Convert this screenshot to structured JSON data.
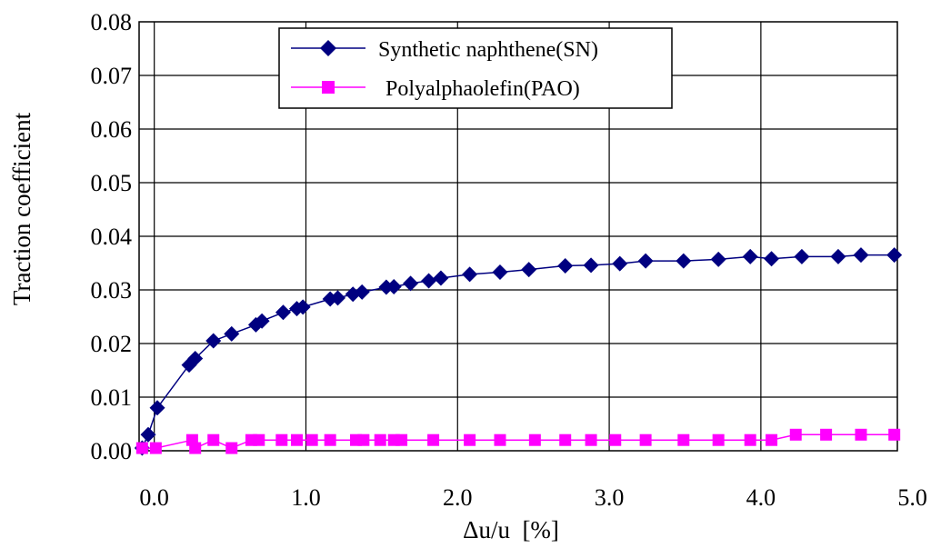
{
  "chart_data": {
    "type": "line",
    "title": "",
    "xlabel": "Δu/u  [%]",
    "ylabel": "Traction coefficient",
    "xlim": [
      -0.1,
      4.9
    ],
    "ylim": [
      0,
      0.08
    ],
    "grid": true,
    "legend": "top-center",
    "x_ticks": [
      0.0,
      1.0,
      2.0,
      3.0,
      4.0,
      5.0
    ],
    "x_tick_labels": [
      "0.0",
      "1.0",
      "2.0",
      "3.0",
      "4.0",
      "5.0"
    ],
    "y_ticks": [
      0,
      0.01,
      0.02,
      0.03,
      0.04,
      0.05,
      0.06,
      0.07,
      0.08
    ],
    "y_tick_labels": [
      "0.00",
      "0.01",
      "0.02",
      "0.03",
      "0.04",
      "0.05",
      "0.06",
      "0.07",
      "0.08"
    ],
    "series": [
      {
        "name": "Synthetic naphthene(SN)",
        "color": "#000080",
        "marker": "diamond",
        "x": [
          -0.08,
          -0.04,
          0.02,
          0.23,
          0.27,
          0.39,
          0.51,
          0.67,
          0.71,
          0.85,
          0.94,
          0.98,
          1.16,
          1.21,
          1.31,
          1.37,
          1.53,
          1.58,
          1.69,
          1.81,
          1.89,
          2.08,
          2.28,
          2.47,
          2.71,
          2.88,
          3.07,
          3.24,
          3.49,
          3.72,
          3.93,
          4.07,
          4.27,
          4.51,
          4.66,
          4.88
        ],
        "y": [
          0.0005,
          0.003,
          0.008,
          0.016,
          0.0172,
          0.0205,
          0.0218,
          0.0235,
          0.0242,
          0.0258,
          0.0265,
          0.0268,
          0.0283,
          0.0285,
          0.0292,
          0.0296,
          0.0305,
          0.0306,
          0.0312,
          0.0317,
          0.0322,
          0.0329,
          0.0333,
          0.0338,
          0.0345,
          0.0346,
          0.0349,
          0.0354,
          0.0354,
          0.0357,
          0.0362,
          0.0358,
          0.0362,
          0.0362,
          0.0365,
          0.0365
        ]
      },
      {
        "name": "Polyalphaolefin(PAO)",
        "color": "#ff00ff",
        "marker": "square",
        "x": [
          -0.08,
          0.01,
          0.25,
          0.27,
          0.39,
          0.51,
          0.64,
          0.69,
          0.84,
          0.94,
          1.04,
          1.16,
          1.33,
          1.38,
          1.49,
          1.58,
          1.63,
          1.84,
          2.08,
          2.28,
          2.51,
          2.71,
          2.88,
          3.04,
          3.24,
          3.49,
          3.72,
          3.93,
          4.07,
          4.23,
          4.43,
          4.66,
          4.88
        ],
        "y": [
          0.0005,
          0.0005,
          0.002,
          0.0005,
          0.002,
          0.0005,
          0.002,
          0.002,
          0.002,
          0.002,
          0.002,
          0.002,
          0.002,
          0.002,
          0.002,
          0.002,
          0.002,
          0.002,
          0.002,
          0.002,
          0.002,
          0.002,
          0.002,
          0.002,
          0.002,
          0.002,
          0.002,
          0.002,
          0.002,
          0.003,
          0.003,
          0.003,
          0.003
        ]
      }
    ]
  }
}
